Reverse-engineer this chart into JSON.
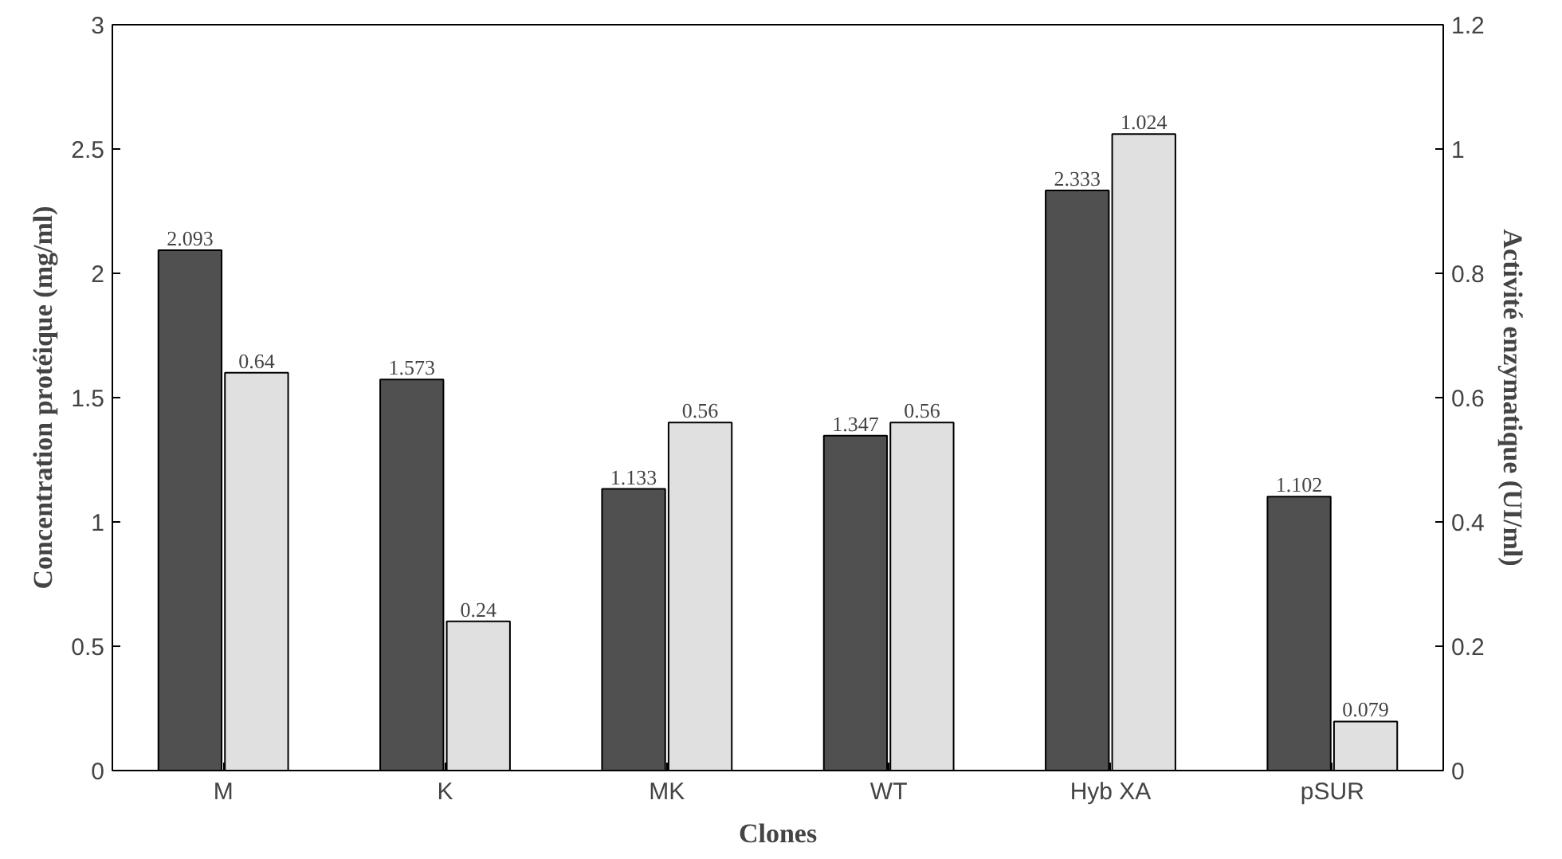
{
  "chart_data": {
    "type": "bar",
    "xlabel": "Clones",
    "ylabel": "Concentration protéique (mg/ml)",
    "y2label": "Activité enzymatique (UI/ml)",
    "categories": [
      "M",
      "K",
      "MK",
      "WT",
      "Hyb XA",
      "pSUR"
    ],
    "series": [
      {
        "color": "#505050",
        "values": [
          2.093,
          1.573,
          1.133,
          1.347,
          2.333,
          1.102
        ]
      },
      {
        "color": "#e0e0e0",
        "values": [
          0.64,
          0.24,
          0.56,
          0.56,
          1.024,
          0.079
        ],
        "axis": "y2"
      }
    ],
    "ylim": [
      0,
      3
    ],
    "yticks": [
      0,
      {
        "value": 0.5,
        "label": "0.5"
      },
      1,
      {
        "value": 1.5,
        "label": "1.5"
      },
      2,
      {
        "value": 2.5,
        "label": "2.5"
      },
      3
    ],
    "y2lim": [
      0,
      1.2
    ],
    "y2ticks": [
      0,
      {
        "value": 0.2,
        "label": "0.2"
      },
      {
        "value": 0.4,
        "label": "0.4"
      },
      {
        "value": 0.6,
        "label": "0.6"
      },
      {
        "value": 0.8,
        "label": "0.8"
      },
      1,
      {
        "value": 1.2,
        "label": "1.2"
      }
    ],
    "data_labels": true,
    "grid": false
  }
}
